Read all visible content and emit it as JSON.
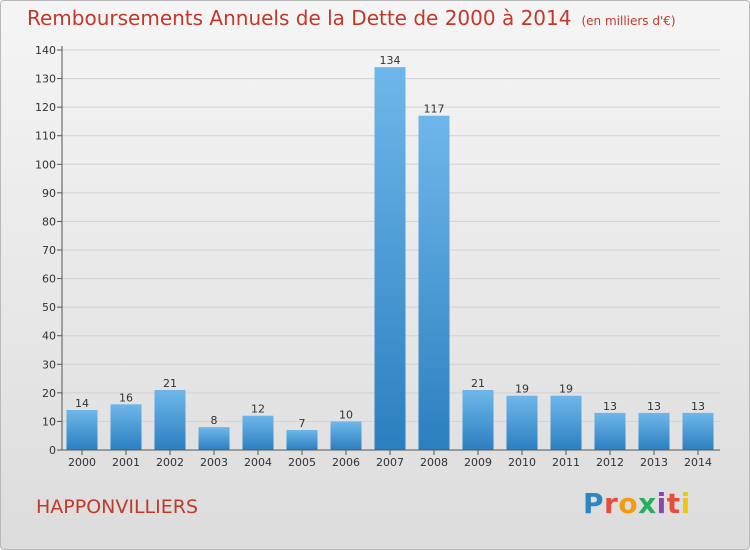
{
  "title": "Remboursements Annuels de la Dette de 2000 à 2014",
  "title_unit": "(en milliers d'€)",
  "commune": "HAPPONVILLIERS",
  "logo": {
    "text": "Proxiti",
    "letters": [
      {
        "char": "P",
        "color": "#2e86c1"
      },
      {
        "char": "r",
        "color": "#e74c3c"
      },
      {
        "char": "o",
        "color": "#f39c12"
      },
      {
        "char": "x",
        "color": "#27ae60"
      },
      {
        "char": "i",
        "color": "#8e44ad"
      },
      {
        "char": "t",
        "color": "#e74c3c"
      },
      {
        "char": "i",
        "color": "#f1c40f"
      }
    ]
  },
  "colors": {
    "title": "#c0392b",
    "bar_light": "#6fb7ea",
    "bar_dark": "#2b7fc0",
    "grid": "#d2d2d2",
    "axis": "#555555"
  },
  "chart_data": {
    "type": "bar",
    "categories": [
      "2000",
      "2001",
      "2002",
      "2003",
      "2004",
      "2005",
      "2006",
      "2007",
      "2008",
      "2009",
      "2010",
      "2011",
      "2012",
      "2013",
      "2014"
    ],
    "values": [
      14,
      16,
      21,
      8,
      12,
      7,
      10,
      134,
      117,
      21,
      19,
      19,
      13,
      13,
      13
    ],
    "ylim": [
      0,
      140
    ],
    "yticks": [
      0,
      10,
      20,
      30,
      40,
      50,
      60,
      70,
      80,
      90,
      100,
      110,
      120,
      130,
      140
    ],
    "grid": true,
    "legend": "none"
  }
}
